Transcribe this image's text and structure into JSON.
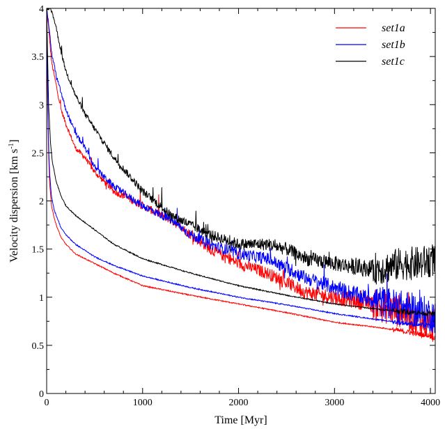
{
  "chart_data": {
    "type": "line",
    "xlabel": "Time [Myr]",
    "ylabel_main": "Velocity dispersion [km s",
    "ylabel_sup": "-1",
    "ylabel_end": "]",
    "xlim": [
      0,
      4050
    ],
    "ylim": [
      0,
      4
    ],
    "x_ticks": [
      0,
      1000,
      2000,
      3000,
      4000
    ],
    "y_ticks": [
      0,
      0.5,
      1,
      1.5,
      2,
      2.5,
      3,
      3.5,
      4
    ],
    "x_tick_labels": [
      "0",
      "1000",
      "2000",
      "3000",
      "4000"
    ],
    "y_tick_labels": [
      "0",
      "0.5",
      "1",
      "1.5",
      "2",
      "2.5",
      "3",
      "3.5",
      "4"
    ],
    "x_minor_step": 200,
    "y_minor_step": 0.25,
    "grid": false,
    "legend_position": "top-right",
    "legend": [
      "set1a",
      "set1b",
      "set1c"
    ],
    "series": [
      {
        "name": "set1a",
        "color": "#ff0000",
        "upper": {
          "x": [
            0,
            20,
            50,
            100,
            150,
            200,
            300,
            400,
            500,
            700,
            1000,
            1300,
            1500,
            1700,
            2000,
            2300,
            2500,
            2700,
            3000,
            3300,
            3500,
            3700,
            3900,
            4050
          ],
          "y": [
            4.0,
            3.8,
            3.45,
            3.2,
            2.95,
            2.8,
            2.55,
            2.45,
            2.3,
            2.1,
            1.95,
            1.8,
            1.65,
            1.5,
            1.35,
            1.25,
            1.15,
            1.05,
            1.0,
            0.95,
            0.9,
            0.85,
            0.75,
            0.7
          ]
        },
        "lower": {
          "x": [
            0,
            10,
            20,
            30,
            50,
            80,
            100,
            150,
            200,
            300,
            500,
            700,
            1000,
            1500,
            2000,
            2500,
            3000,
            3500,
            4000,
            4050
          ],
          "y": [
            4.0,
            3.0,
            2.5,
            2.2,
            1.95,
            1.82,
            1.75,
            1.62,
            1.55,
            1.45,
            1.35,
            1.25,
            1.12,
            1.02,
            0.93,
            0.84,
            0.74,
            0.68,
            0.6,
            0.57
          ]
        }
      },
      {
        "name": "set1b",
        "color": "#0000ff",
        "upper": {
          "x": [
            0,
            20,
            50,
            100,
            200,
            300,
            400,
            500,
            700,
            1000,
            1300,
            1500,
            1700,
            2000,
            2300,
            2500,
            2700,
            3000,
            3300,
            3500,
            3700,
            3900,
            4050
          ],
          "y": [
            4.0,
            3.85,
            3.55,
            3.3,
            2.95,
            2.7,
            2.55,
            2.35,
            2.15,
            1.95,
            1.8,
            1.65,
            1.55,
            1.45,
            1.4,
            1.3,
            1.2,
            1.1,
            1.0,
            0.95,
            0.9,
            0.85,
            0.8
          ]
        },
        "lower": {
          "x": [
            0,
            10,
            20,
            30,
            50,
            80,
            100,
            150,
            200,
            300,
            500,
            700,
            1000,
            1500,
            2000,
            2500,
            3000,
            3500,
            4000,
            4050
          ],
          "y": [
            4.0,
            3.1,
            2.6,
            2.3,
            2.05,
            1.9,
            1.85,
            1.72,
            1.65,
            1.55,
            1.42,
            1.33,
            1.22,
            1.1,
            1.0,
            0.92,
            0.83,
            0.76,
            0.7,
            0.68
          ]
        }
      },
      {
        "name": "set1c",
        "color": "#000000",
        "upper": {
          "x": [
            0,
            30,
            60,
            100,
            150,
            200,
            300,
            400,
            500,
            700,
            1000,
            1300,
            1500,
            1700,
            2000,
            2300,
            2500,
            2700,
            3000,
            3300,
            3500,
            3700,
            3900,
            4050
          ],
          "y": [
            4.0,
            4.0,
            3.95,
            3.8,
            3.55,
            3.35,
            3.1,
            2.9,
            2.75,
            2.45,
            2.1,
            1.85,
            1.75,
            1.65,
            1.55,
            1.55,
            1.5,
            1.4,
            1.35,
            1.3,
            1.3,
            1.35,
            1.35,
            1.4
          ]
        },
        "lower": {
          "x": [
            0,
            10,
            20,
            40,
            60,
            100,
            150,
            200,
            300,
            500,
            700,
            1000,
            1500,
            2000,
            2500,
            3000,
            3500,
            4000,
            4050
          ],
          "y": [
            4.0,
            3.5,
            3.0,
            2.6,
            2.4,
            2.2,
            2.05,
            1.95,
            1.85,
            1.7,
            1.55,
            1.4,
            1.25,
            1.12,
            1.02,
            0.93,
            0.87,
            0.83,
            0.82
          ]
        }
      }
    ]
  }
}
